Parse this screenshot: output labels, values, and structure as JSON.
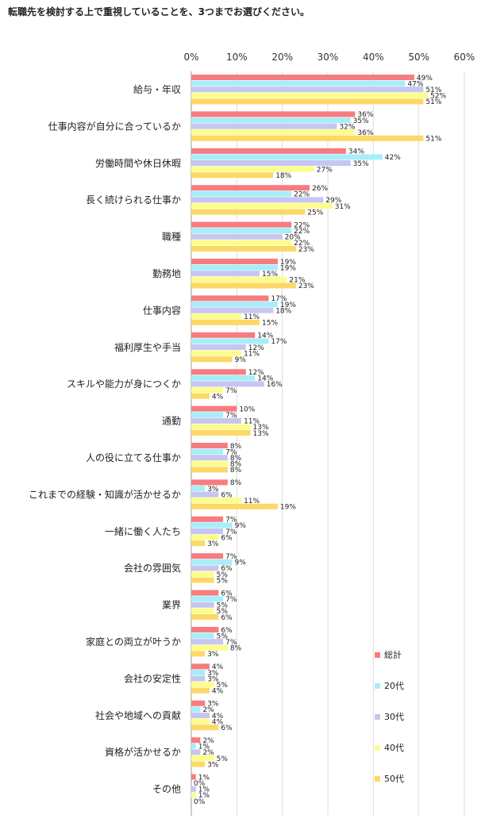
{
  "title": "転職先を検討する上で重視していることを、3つまでお選びください。",
  "chart_data": {
    "type": "bar",
    "orientation": "horizontal",
    "title": "転職先を検討する上で重視していることを、3つまでお選びください。",
    "xlim": [
      0,
      60
    ],
    "tick_labels": [
      "0%",
      "10%",
      "20%",
      "30%",
      "40%",
      "50%",
      "60%"
    ],
    "tick_values": [
      0,
      10,
      20,
      30,
      40,
      50,
      60
    ],
    "grid": true,
    "legend_position": "right",
    "categories": [
      "給与・年収",
      "仕事内容が自分に合っているか",
      "労働時間や休日休暇",
      "長く続けられる仕事か",
      "職種",
      "勤務地",
      "仕事内容",
      "福利厚生や手当",
      "スキルや能力が身につくか",
      "通勤",
      "人の役に立てる仕事か",
      "これまでの経験・知識が活かせるか",
      "一緒に働く人たち",
      "会社の雰囲気",
      "業界",
      "家庭との両立が叶うか",
      "会社の安定性",
      "社会や地域への貢献",
      "資格が活かせるか",
      "その他"
    ],
    "series": [
      {
        "name": "総計",
        "color": "#f77c7f",
        "values": [
          49,
          36,
          34,
          26,
          22,
          19,
          17,
          14,
          12,
          10,
          8,
          8,
          7,
          7,
          6,
          6,
          4,
          3,
          2,
          1
        ]
      },
      {
        "name": "20代",
        "color": "#a8eef8",
        "values": [
          47,
          35,
          42,
          22,
          22,
          19,
          19,
          17,
          14,
          7,
          7,
          3,
          9,
          9,
          7,
          5,
          3,
          2,
          1,
          0
        ]
      },
      {
        "name": "30代",
        "color": "#c6c6f2",
        "values": [
          51,
          32,
          35,
          29,
          20,
          15,
          18,
          12,
          16,
          11,
          8,
          6,
          7,
          6,
          5,
          7,
          3,
          4,
          2,
          1
        ]
      },
      {
        "name": "40代",
        "color": "#fdfd8e",
        "values": [
          52,
          36,
          27,
          31,
          22,
          21,
          11,
          11,
          7,
          13,
          8,
          11,
          6,
          5,
          5,
          8,
          5,
          4,
          5,
          1
        ]
      },
      {
        "name": "50代",
        "color": "#fdd866",
        "values": [
          51,
          51,
          18,
          25,
          23,
          23,
          15,
          9,
          4,
          13,
          8,
          19,
          3,
          5,
          6,
          3,
          4,
          6,
          3,
          0
        ]
      }
    ]
  }
}
